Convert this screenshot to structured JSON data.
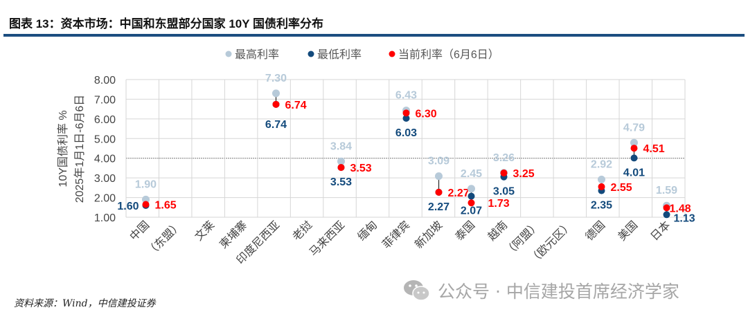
{
  "title": "图表 13：资本市场：中国和东盟部分国家 10Y 国债利率分布",
  "source": "资料来源：Wind，中信建投证券",
  "watermark": "公众号 · 中信建投首席经济学家",
  "colors": {
    "high": "#b7cad9",
    "low": "#134a7c",
    "current": "#ff0000",
    "rule": "#1c4e80"
  },
  "chart_data": {
    "type": "scatter",
    "title": "资本市场：中国和东盟部分国家 10Y 国债利率分布",
    "ylabel": [
      "10Y国债利率 %",
      "2025年1月1日-6月6日"
    ],
    "ylim": [
      1,
      8
    ],
    "yticks": [
      "1.00",
      "2.00",
      "3.00",
      "4.00",
      "5.00",
      "6.00",
      "7.00",
      "8.00"
    ],
    "legend": [
      "最高利率",
      "最低利率",
      "当前利率（6月6日）"
    ],
    "legend_position": "top-right",
    "categories": [
      "中国",
      "（东盟）",
      "文莱",
      "柬埔寨",
      "印度尼西亚",
      "老挝",
      "马来西亚",
      "缅甸",
      "菲律宾",
      "新加坡",
      "泰国",
      "越南",
      "（阿盟）",
      "（欧元区）",
      "德国",
      "美国",
      "日本"
    ],
    "series": [
      {
        "name": "最高利率",
        "values": [
          1.9,
          null,
          null,
          null,
          7.3,
          null,
          3.84,
          null,
          6.43,
          3.09,
          2.45,
          3.26,
          null,
          null,
          2.92,
          4.79,
          1.59
        ]
      },
      {
        "name": "最低利率",
        "values": [
          1.6,
          null,
          null,
          null,
          6.74,
          null,
          3.53,
          null,
          6.03,
          2.27,
          2.07,
          3.05,
          null,
          null,
          2.35,
          4.01,
          1.13
        ]
      },
      {
        "name": "当前利率（6月6日）",
        "values": [
          1.65,
          null,
          null,
          null,
          6.74,
          null,
          3.53,
          null,
          6.3,
          2.27,
          1.73,
          3.25,
          null,
          null,
          2.55,
          4.51,
          1.48
        ]
      }
    ]
  }
}
